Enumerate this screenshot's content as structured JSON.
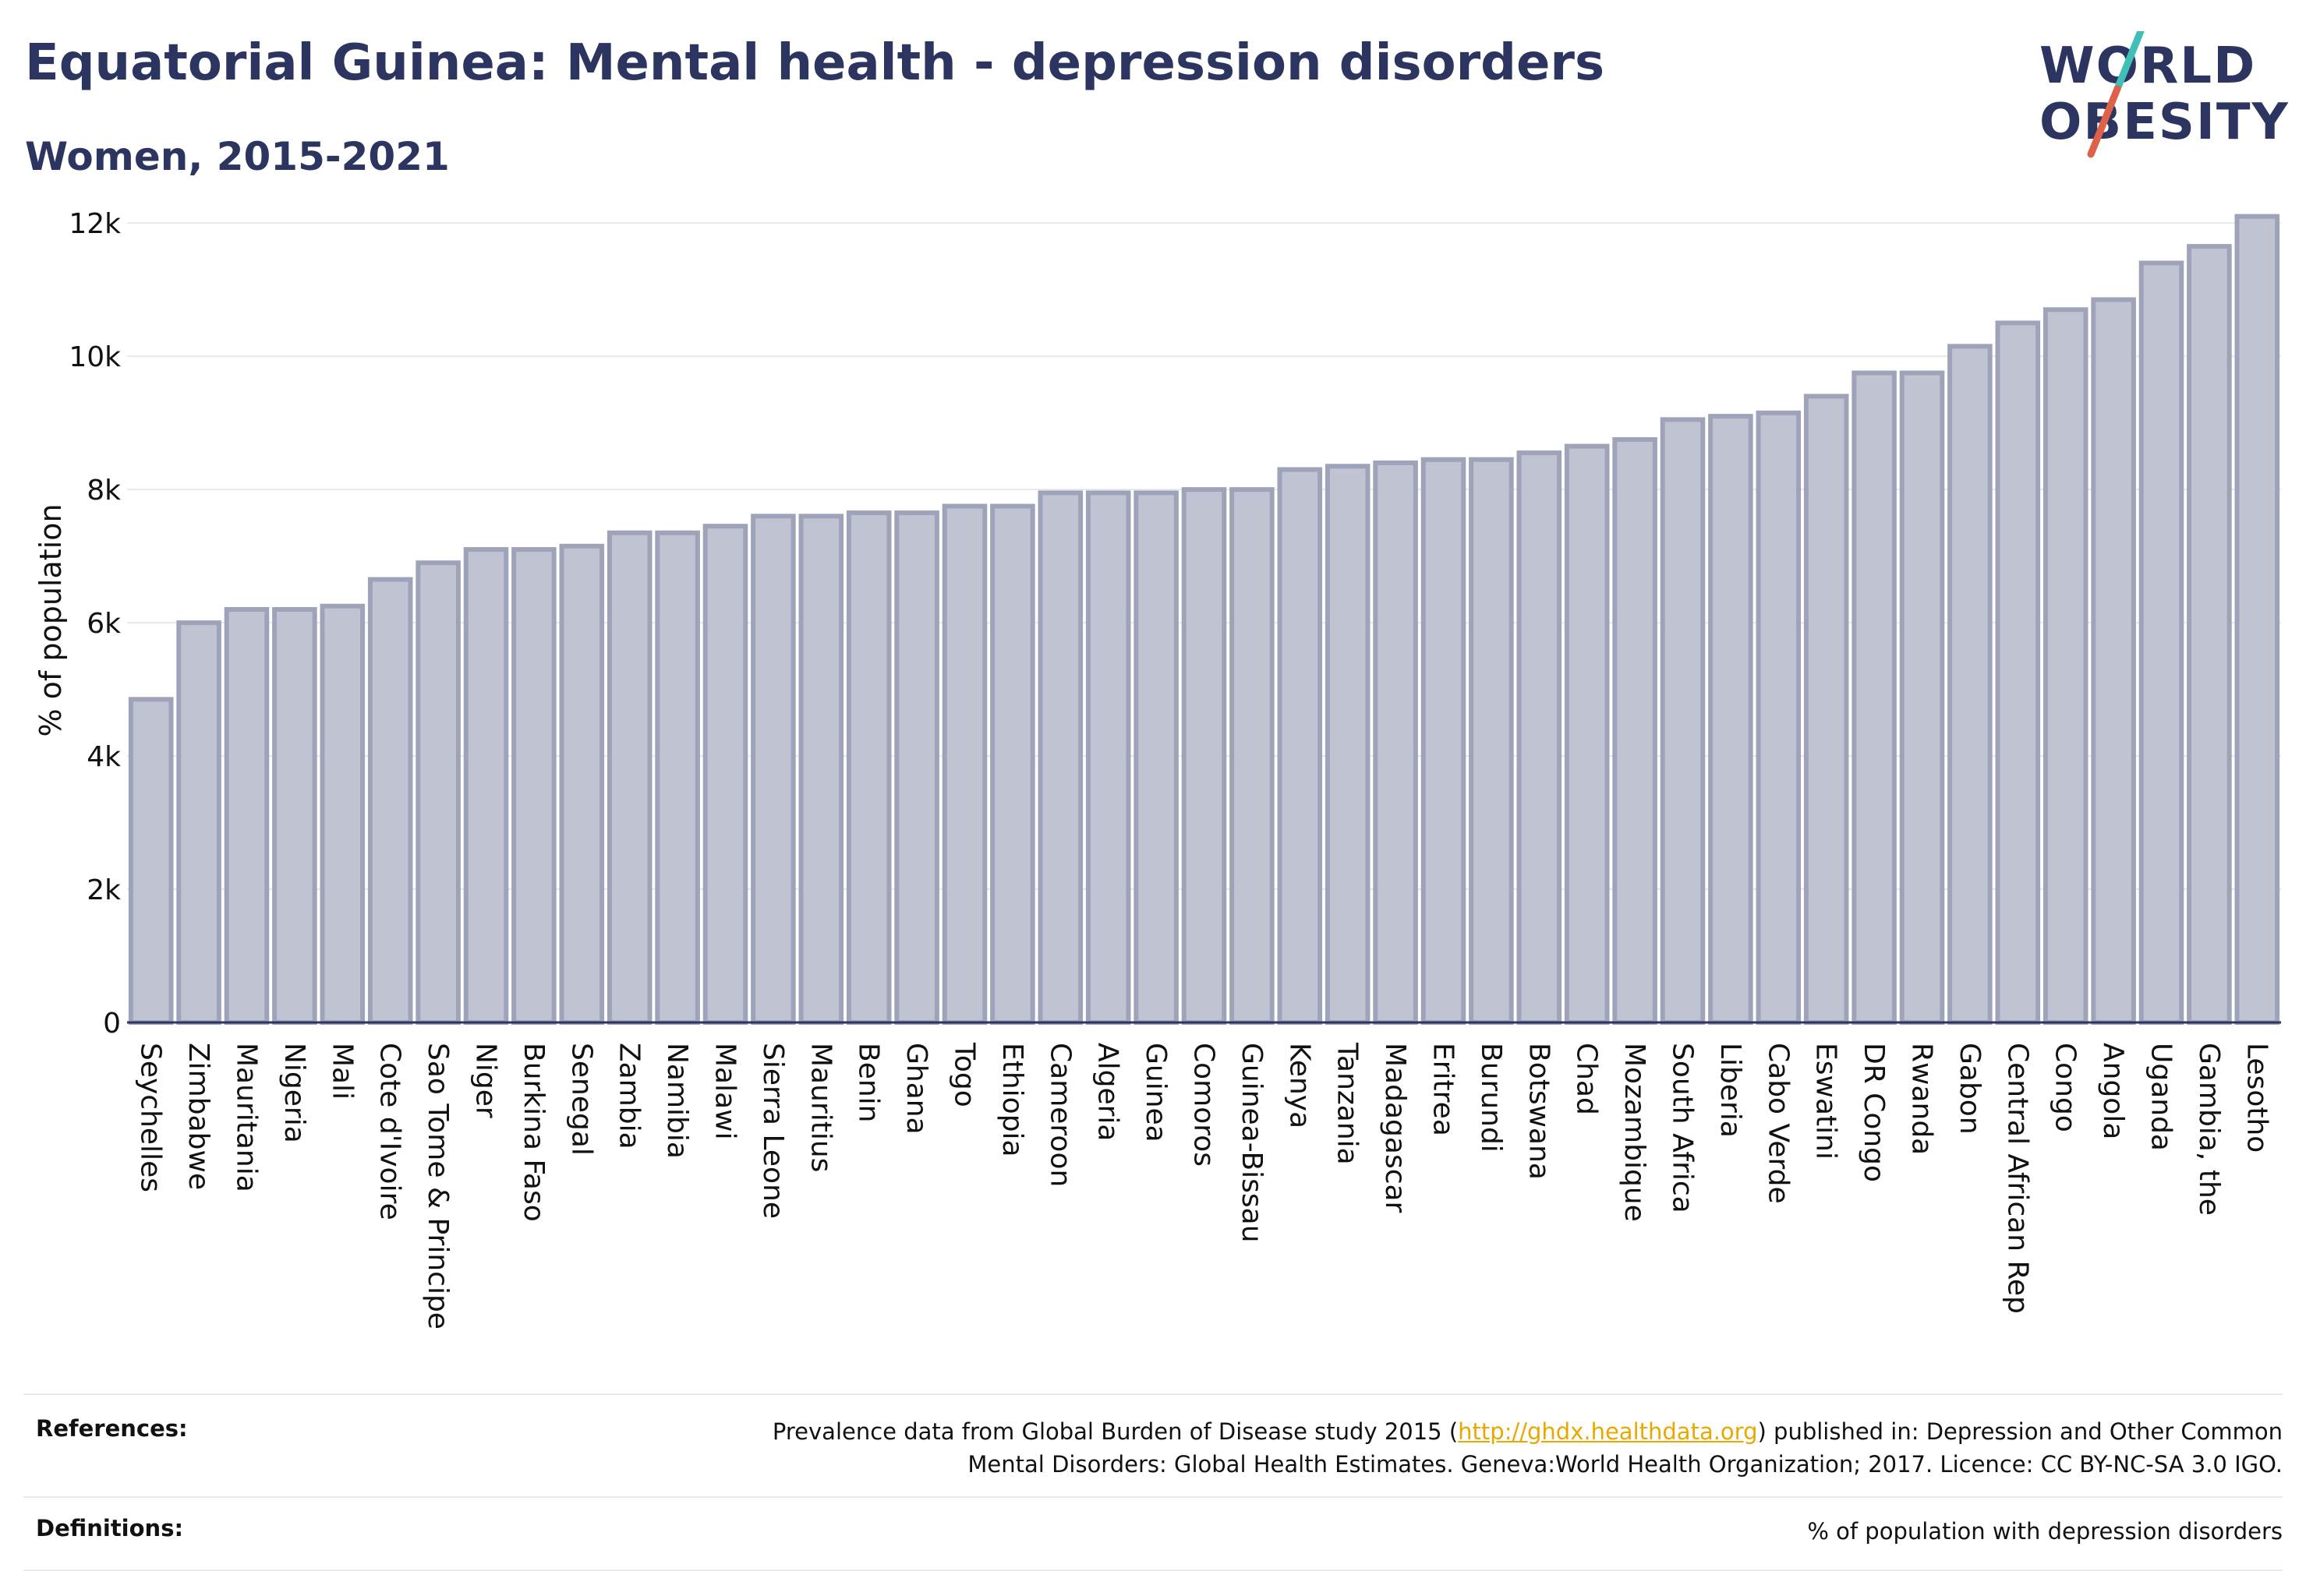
{
  "header": {
    "title": "Equatorial Guinea: Mental health - depression disorders",
    "subtitle": "Women, 2015-2021"
  },
  "logo": {
    "line1": "WORLD",
    "line2": "OBESITY",
    "slash_colors": [
      "#3fbfb5",
      "#e0614a"
    ],
    "text_color": "#2c3560"
  },
  "chart_data": {
    "type": "bar",
    "title": "Equatorial Guinea: Mental health - depression disorders",
    "subtitle": "Women, 2015-2021",
    "xlabel": "",
    "ylabel": "% of population",
    "ylim": [
      0,
      12400
    ],
    "yticks": [
      0,
      2000,
      4000,
      6000,
      8000,
      10000,
      12000
    ],
    "ytick_labels": [
      "0",
      "2k",
      "4k",
      "6k",
      "8k",
      "10k",
      "12k"
    ],
    "grid": true,
    "legend": "none",
    "bar_fill": "#c0c4d2",
    "bar_stroke": "#9ea3b9",
    "categories": [
      "Seychelles",
      "Zimbabwe",
      "Mauritania",
      "Nigeria",
      "Mali",
      "Cote d'Ivoire",
      "Sao Tome & Principe",
      "Niger",
      "Burkina Faso",
      "Senegal",
      "Zambia",
      "Namibia",
      "Malawi",
      "Sierra Leone",
      "Mauritius",
      "Benin",
      "Ghana",
      "Togo",
      "Ethiopia",
      "Cameroon",
      "Algeria",
      "Guinea",
      "Comoros",
      "Guinea-Bissau",
      "Kenya",
      "Tanzania",
      "Madagascar",
      "Eritrea",
      "Burundi",
      "Botswana",
      "Chad",
      "Mozambique",
      "South Africa",
      "Liberia",
      "Cabo Verde",
      "Eswatini",
      "DR Congo",
      "Rwanda",
      "Gabon",
      "Central African Rep",
      "Congo",
      "Angola",
      "Uganda",
      "Gambia, the",
      "Lesotho"
    ],
    "values": [
      4850,
      6000,
      6200,
      6200,
      6250,
      6650,
      6900,
      7100,
      7100,
      7150,
      7350,
      7350,
      7450,
      7600,
      7600,
      7650,
      7650,
      7750,
      7750,
      7950,
      7950,
      7950,
      8000,
      8000,
      8300,
      8350,
      8400,
      8450,
      8450,
      8550,
      8650,
      8750,
      9050,
      9100,
      9150,
      9400,
      9750,
      9750,
      10150,
      10500,
      10700,
      10850,
      11400,
      11650,
      12100
    ]
  },
  "references": {
    "label": "References:",
    "text_before_link": "Prevalence data from Global Burden of Disease study 2015 (",
    "link": "http://ghdx.healthdata.org",
    "text_after_link": ") published in: Depression and Other Common",
    "line2": "Mental Disorders: Global Health Estimates. Geneva:World Health Organization; 2017. Licence: CC BY-NC-SA 3.0 IGO."
  },
  "definitions": {
    "label": "Definitions:",
    "text": "% of population with depression disorders"
  }
}
